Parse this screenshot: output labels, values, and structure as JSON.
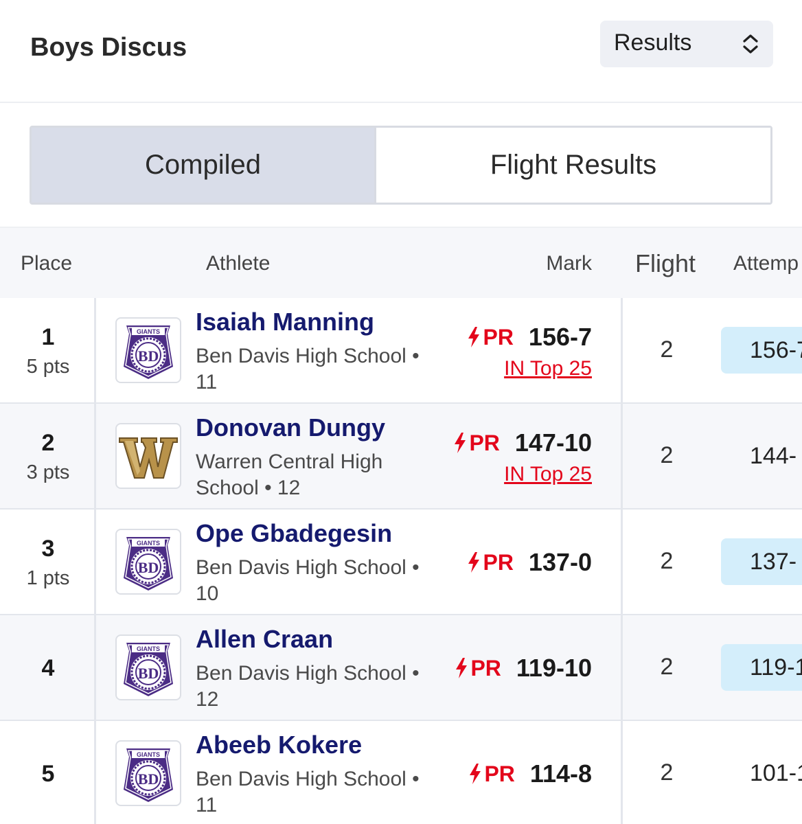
{
  "header": {
    "title": "Boys Discus",
    "view_select": {
      "selected": "Results",
      "icon": "chevron-up-down-icon"
    }
  },
  "tabs": [
    {
      "label": "Compiled",
      "active": true
    },
    {
      "label": "Flight Results",
      "active": false
    }
  ],
  "table": {
    "columns": {
      "place": "Place",
      "athlete": "Athlete",
      "mark": "Mark",
      "flight": "Flight",
      "attempts": "Attemp"
    },
    "rows": [
      {
        "place": "1",
        "points": "5 pts",
        "logo": "ben-davis-giants-logo",
        "name": "Isaiah Manning",
        "school": "Ben Davis High School • 11",
        "pr": "PR",
        "mark": "156-7",
        "top25": "IN Top 25",
        "flight": "2",
        "attempt": "156-7",
        "attempt_highlight": true
      },
      {
        "place": "2",
        "points": "3 pts",
        "logo": "warren-central-logo",
        "name": "Donovan Dungy",
        "school": "Warren Central High School • 12",
        "pr": "PR",
        "mark": "147-10",
        "top25": "IN Top 25",
        "flight": "2",
        "attempt": "144-",
        "attempt_highlight": false
      },
      {
        "place": "3",
        "points": "1 pts",
        "logo": "ben-davis-giants-logo",
        "name": "Ope Gbadegesin",
        "school": "Ben Davis High School • 10",
        "pr": "PR",
        "mark": "137-0",
        "top25": "",
        "flight": "2",
        "attempt": "137-",
        "attempt_highlight": true
      },
      {
        "place": "4",
        "points": "",
        "logo": "ben-davis-giants-logo",
        "name": "Allen Craan",
        "school": "Ben Davis High School • 12",
        "pr": "PR",
        "mark": "119-10",
        "top25": "",
        "flight": "2",
        "attempt": "119-1",
        "attempt_highlight": true
      },
      {
        "place": "5",
        "points": "",
        "logo": "ben-davis-giants-logo",
        "name": "Abeeb Kokere",
        "school": "Ben Davis High School • 11",
        "pr": "PR",
        "mark": "114-8",
        "top25": "",
        "flight": "2",
        "attempt": "101-1",
        "attempt_highlight": false
      }
    ]
  },
  "logos": {
    "ben_davis_text": "GIANTS",
    "ben_davis_monogram": "BD"
  },
  "colors": {
    "name_navy": "#151a6e",
    "pr_red": "#e3061b",
    "chip_blue": "#d4eefb",
    "bd_purple": "#4b2c85",
    "warren_gold": "#b8924a"
  }
}
